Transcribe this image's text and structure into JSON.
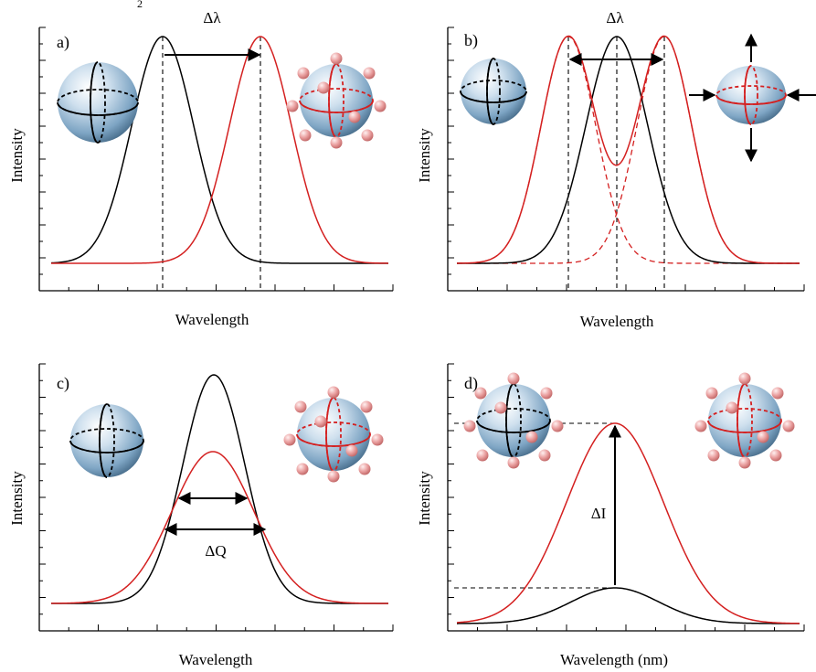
{
  "top_fragment": "2",
  "panels": {
    "a": {
      "tag": "a)",
      "ylabel": "Intensity",
      "xlabel": "Wavelength",
      "annotation": "Δλ"
    },
    "b": {
      "tag": "b)",
      "ylabel": "Intensity",
      "xlabel": "Wavelength",
      "annotation": "Δλ"
    },
    "c": {
      "tag": "c)",
      "ylabel": "Intensity",
      "xlabel": "Wavelength",
      "annotation": "ΔQ"
    },
    "d": {
      "tag": "d)",
      "ylabel": "Intensity",
      "xlabel": "Wavelength (nm)",
      "annotation": "ΔI"
    }
  },
  "colors": {
    "bare": "#000000",
    "functionalized": "#d42020",
    "sphere": "#7aa6c8",
    "particle": "#e89090"
  },
  "icons": [
    "bare-nanoparticle-icon",
    "functionalized-nanoparticle-icon",
    "compression-arrows-icon"
  ]
}
